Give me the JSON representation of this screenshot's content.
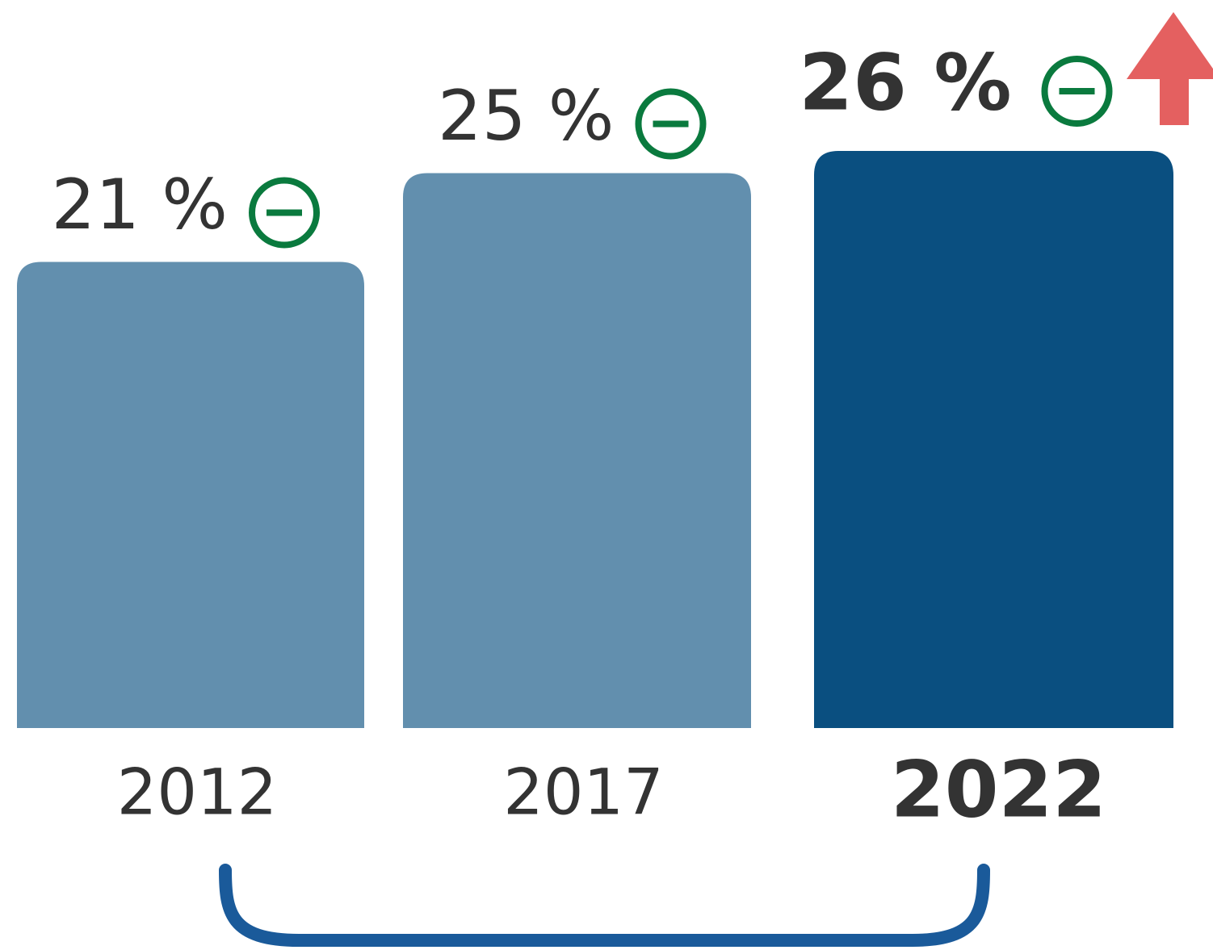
{
  "chart_data": {
    "type": "bar",
    "categories": [
      "2012",
      "2017",
      "2022"
    ],
    "values": [
      21,
      25,
      26
    ],
    "value_labels": [
      "21 %",
      "25 %",
      "26 %"
    ],
    "colors": [
      "#628fae",
      "#628fae",
      "#0a4f80"
    ]
  }
}
